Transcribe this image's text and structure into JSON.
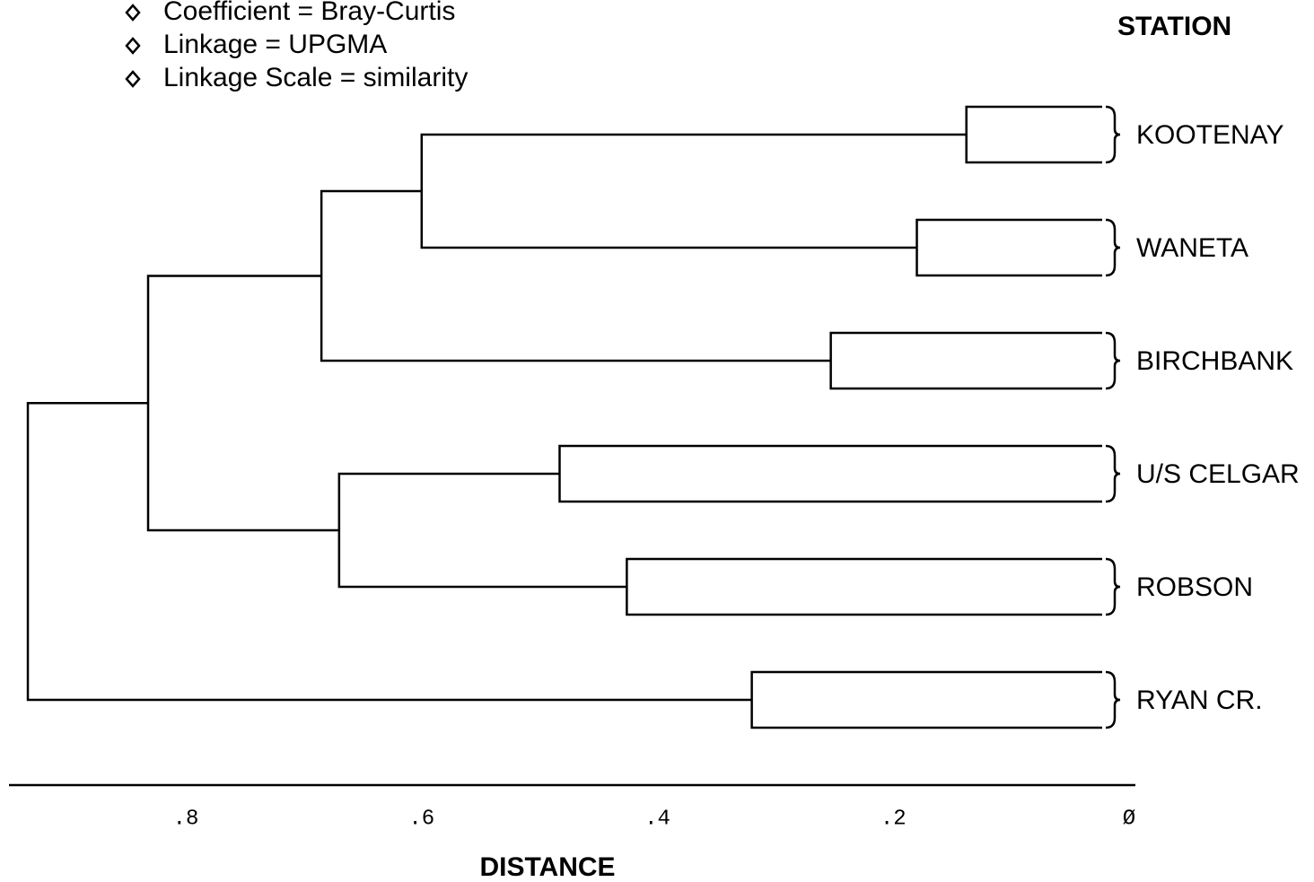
{
  "chart_data": {
    "type": "dendrogram",
    "notes": [
      "Coefficient = Bray-Curtis",
      "Linkage     = UPGMA",
      "Linkage Scale = similarity"
    ],
    "leaf_title": "STATION",
    "xlabel": "DISTANCE",
    "xlim": [
      0.95,
      0
    ],
    "xticks": [
      {
        "value": 0.8,
        "label": ".8"
      },
      {
        "value": 0.6,
        "label": ".6"
      },
      {
        "value": 0.4,
        "label": ".4"
      },
      {
        "value": 0.2,
        "label": ".2"
      },
      {
        "value": 0,
        "label": "Ø"
      }
    ],
    "leaves": [
      {
        "label": "KOOTENAY",
        "value": 0.138
      },
      {
        "label": "WANETA",
        "value": 0.18
      },
      {
        "label": "BIRCHBANK",
        "value": 0.253
      },
      {
        "label": "U/S CELGAR",
        "value": 0.483
      },
      {
        "label": "ROBSON",
        "value": 0.426
      },
      {
        "label": "RYAN CR.",
        "value": 0.32
      }
    ],
    "merges": [
      {
        "children": [
          0,
          1
        ],
        "value": 0.6
      },
      {
        "children": [
          6,
          2
        ],
        "value": 0.685
      },
      {
        "children": [
          3,
          4
        ],
        "value": 0.67
      },
      {
        "children": [
          7,
          8
        ],
        "value": 0.832
      },
      {
        "children": [
          9,
          5
        ],
        "value": 0.934
      }
    ]
  }
}
